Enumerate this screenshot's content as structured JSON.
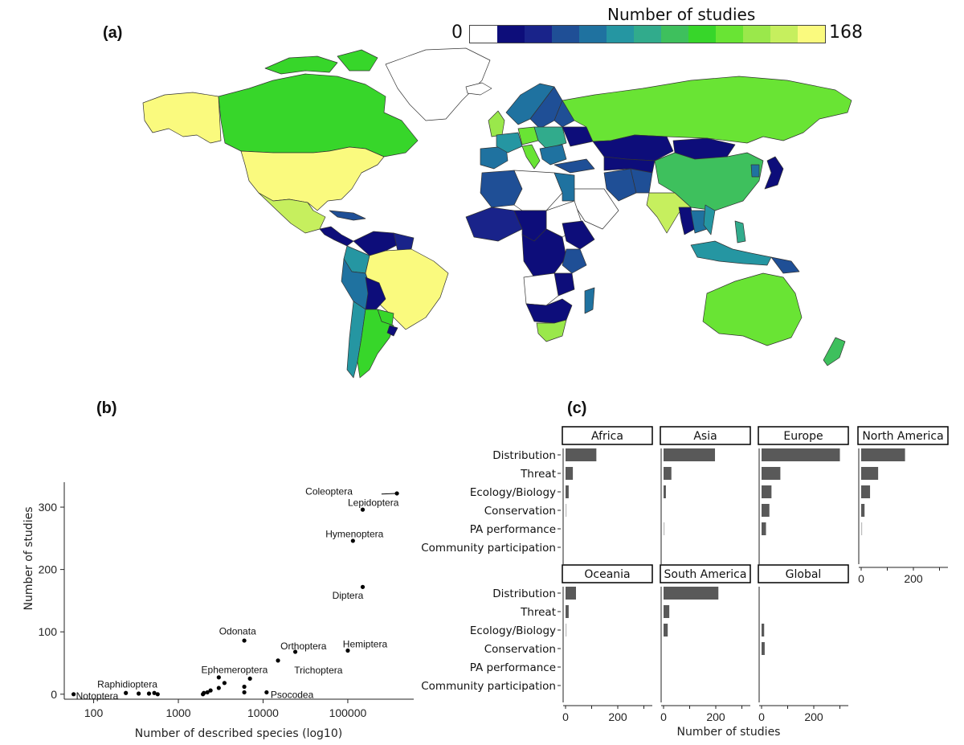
{
  "panels": {
    "a": "(a)",
    "b": "(b)",
    "c": "(c)"
  },
  "map_legend": {
    "title": "Number of studies",
    "min_label": "0",
    "max_label": "168",
    "colors": [
      "#ffffff",
      "#0d0d7a",
      "#19238a",
      "#1f4f96",
      "#1f72a0",
      "#2596a2",
      "#31ab8c",
      "#3ec05d",
      "#37d62a",
      "#69e434",
      "#9ae84b",
      "#c6ef5e",
      "#fafa7e"
    ]
  },
  "chart_data": [
    {
      "type": "map",
      "title": "",
      "legend_title": "Number of studies",
      "range": [
        0,
        168
      ]
    },
    {
      "type": "scatter",
      "xlabel": "Number of described species (log10)",
      "ylabel": "Number of studies",
      "xscale": "log",
      "xlim": [
        45,
        600000
      ],
      "ylim": [
        -8,
        340
      ],
      "x_ticks": [
        {
          "v": 100,
          "t": "100"
        },
        {
          "v": 1000,
          "t": "1000"
        },
        {
          "v": 10000,
          "t": "10000"
        },
        {
          "v": 100000,
          "t": "100000"
        }
      ],
      "y_ticks": [
        {
          "v": 0,
          "t": "0"
        },
        {
          "v": 100,
          "t": "100"
        },
        {
          "v": 200,
          "t": "200"
        },
        {
          "v": 300,
          "t": "300"
        }
      ],
      "points": [
        {
          "x": 380000,
          "y": 322
        },
        {
          "x": 150000,
          "y": 296
        },
        {
          "x": 115000,
          "y": 246
        },
        {
          "x": 150000,
          "y": 172
        },
        {
          "x": 6000,
          "y": 86
        },
        {
          "x": 24000,
          "y": 68
        },
        {
          "x": 100000,
          "y": 70
        },
        {
          "x": 15000,
          "y": 54
        },
        {
          "x": 3000,
          "y": 27
        },
        {
          "x": 3500,
          "y": 18
        },
        {
          "x": 7000,
          "y": 25
        },
        {
          "x": 6000,
          "y": 12
        },
        {
          "x": 11000,
          "y": 3
        },
        {
          "x": 58,
          "y": 0
        },
        {
          "x": 240,
          "y": 2
        },
        {
          "x": 340,
          "y": 1
        },
        {
          "x": 450,
          "y": 1
        },
        {
          "x": 520,
          "y": 2
        },
        {
          "x": 570,
          "y": 0
        },
        {
          "x": 2000,
          "y": 2
        },
        {
          "x": 2200,
          "y": 3
        },
        {
          "x": 2400,
          "y": 6
        },
        {
          "x": 3000,
          "y": 10
        },
        {
          "x": 6000,
          "y": 3
        },
        {
          "x": 1950,
          "y": 0
        }
      ],
      "labels": [
        {
          "text": "Coleoptera",
          "x": 60000,
          "y": 320,
          "anchor": "middle"
        },
        {
          "text": "Lepidoptera",
          "x": 200000,
          "y": 302,
          "anchor": "middle"
        },
        {
          "text": "Hymenoptera",
          "x": 120000,
          "y": 252,
          "anchor": "middle"
        },
        {
          "text": "Diptera",
          "x": 100000,
          "y": 153,
          "anchor": "middle"
        },
        {
          "text": "Odonata",
          "x": 5000,
          "y": 96,
          "anchor": "middle"
        },
        {
          "text": "Orthoptera",
          "x": 30000,
          "y": 72,
          "anchor": "middle"
        },
        {
          "text": "Hemiptera",
          "x": 160000,
          "y": 75,
          "anchor": "middle"
        },
        {
          "text": "Trichoptera",
          "x": 45000,
          "y": 33,
          "anchor": "middle"
        },
        {
          "text": "Ephemeroptera",
          "x": 4600,
          "y": 34,
          "anchor": "middle"
        },
        {
          "text": "Raphidioptera",
          "x": 250,
          "y": 11,
          "anchor": "middle"
        },
        {
          "text": "Notoptera",
          "x": 110,
          "y": -8,
          "anchor": "middle"
        },
        {
          "text": "Psocodea",
          "x": 22000,
          "y": -6,
          "anchor": "middle"
        }
      ]
    },
    {
      "type": "bar",
      "orientation": "horizontal",
      "xlabel": "Number of studies",
      "xlim": [
        -10,
        320
      ],
      "x_ticks": [
        {
          "v": 0,
          "t": "0"
        },
        {
          "v": 200,
          "t": "200"
        }
      ],
      "categories": [
        "Distribution",
        "Threat",
        "Ecology/Biology",
        "Conservation",
        "PA performance",
        "Community participation"
      ],
      "facets": [
        {
          "name": "Africa",
          "values": [
            118,
            28,
            12,
            2,
            0,
            0
          ]
        },
        {
          "name": "Asia",
          "values": [
            197,
            30,
            9,
            0,
            1,
            0
          ]
        },
        {
          "name": "Europe",
          "values": [
            300,
            72,
            38,
            30,
            17,
            0
          ]
        },
        {
          "name": "North America",
          "values": [
            168,
            65,
            34,
            13,
            2,
            0
          ]
        },
        {
          "name": "Oceania",
          "values": [
            40,
            12,
            3,
            0,
            0,
            0
          ]
        },
        {
          "name": "South America",
          "values": [
            210,
            22,
            16,
            0,
            0,
            0
          ]
        },
        {
          "name": "Global",
          "values": [
            0,
            0,
            10,
            12,
            0,
            0
          ]
        }
      ]
    }
  ]
}
